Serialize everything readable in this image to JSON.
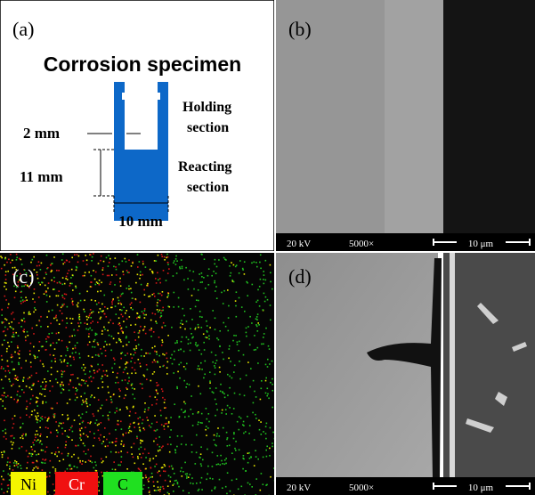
{
  "panel_a": {
    "label": "(a)",
    "title": "Corrosion specimen",
    "holding_section": [
      "Holding",
      "section"
    ],
    "reacting_section": [
      "Reacting",
      "section"
    ],
    "wall_width": "2 mm",
    "height": "11 mm",
    "width": "10 mm"
  },
  "panel_b": {
    "label": "(b)",
    "voltage": "20 kV",
    "magnification": "5000×",
    "scale": "10 μm"
  },
  "panel_c": {
    "label": "(c)",
    "legend": [
      "Ni",
      "Cr",
      "C"
    ]
  },
  "panel_d": {
    "label": "(d)",
    "voltage": "20 kV",
    "magnification": "5000×",
    "scale": "10 μm"
  }
}
